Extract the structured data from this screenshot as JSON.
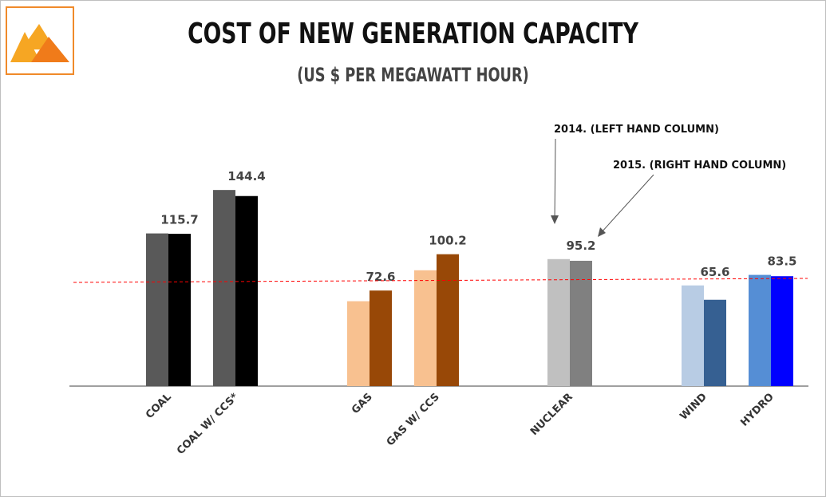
{
  "page": {
    "title": "COST OF NEW GENERATION CAPACITY",
    "subtitle": "(US $ PER MEGAWATT HOUR)",
    "logo_icon": "triangle-logo-icon"
  },
  "chart_data": {
    "type": "bar",
    "title": "COST OF NEW GENERATION CAPACITY",
    "subtitle": "(US $ PER MEGAWATT HOUR)",
    "xlabel": "",
    "ylabel": "",
    "ylim": [
      0,
      160
    ],
    "grid": false,
    "categories": [
      "COAL",
      "COAL W/ CCS*",
      "GAS",
      "GAS W/ CCS",
      "NUCLEAR",
      "WIND",
      "HYDRO"
    ],
    "series": [
      {
        "name": "2014",
        "values": [
          116,
          149,
          64.5,
          88,
          96.5,
          76.5,
          84.5
        ]
      },
      {
        "name": "2015",
        "values": [
          115.7,
          144.4,
          72.6,
          100.2,
          95.2,
          65.6,
          83.5
        ]
      }
    ],
    "data_labels": [
      "115.7",
      "144.4",
      "72.6",
      "100.2",
      "95.2",
      "65.6",
      "83.5"
    ],
    "colors": {
      "2014": [
        "#595959",
        "#595959",
        "#f8c190",
        "#f8c190",
        "#c0c0c0",
        "#b8cce4",
        "#558ed5"
      ],
      "2015": [
        "#000000",
        "#000000",
        "#984807",
        "#984807",
        "#808080",
        "#366092",
        "#0000ff"
      ]
    },
    "reference_line": {
      "style": "dashed",
      "color": "#ff0000"
    },
    "annotations": [
      {
        "text": "2014. (LEFT HAND COLUMN)",
        "target": "NUCLEAR 2014"
      },
      {
        "text": "2015. (RIGHT HAND COLUMN)",
        "target": "NUCLEAR 2015"
      }
    ]
  }
}
